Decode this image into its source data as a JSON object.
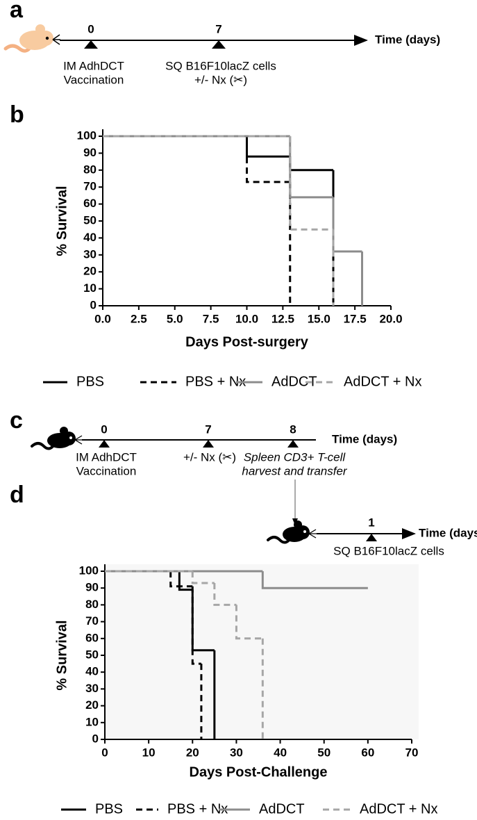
{
  "panel_labels": [
    "a",
    "b",
    "c",
    "d"
  ],
  "timeline_a": {
    "axis_label": "Time (days)",
    "events": [
      {
        "day": 0,
        "label": [
          "IM AdhDCT",
          "Vaccination"
        ]
      },
      {
        "day": 7,
        "label": [
          "SQ B16F10lacZ cells",
          "+/- Nx  (✂)"
        ]
      }
    ]
  },
  "timeline_c": {
    "axis_label": "Time (days)",
    "events": [
      {
        "day": 0,
        "label": [
          "IM AdhDCT",
          "Vaccination"
        ]
      },
      {
        "day": 7,
        "label": [
          "+/- Nx (✂)"
        ]
      },
      {
        "day": 8,
        "label": [
          "Spleen CD3+ T-cell",
          "harvest and transfer"
        ]
      }
    ],
    "second": {
      "axis_label": "Time (days)",
      "events": [
        {
          "day": 1,
          "label": [
            "SQ B16F10lacZ cells"
          ]
        }
      ]
    }
  },
  "chart_data": [
    {
      "type": "step",
      "x_label": "Days Post-surgery",
      "y_label": "% Survival",
      "legend": "bottom",
      "xlim": [
        0,
        20
      ],
      "ylim": [
        0,
        100
      ],
      "xticks": [
        {
          "value": 0,
          "label": "0.0"
        },
        2.5,
        {
          "value": 5,
          "label": "5.0"
        },
        7.5,
        {
          "value": 10,
          "label": "10.0"
        },
        12.5,
        {
          "value": 15,
          "label": "15.0"
        },
        17.5,
        {
          "value": 20,
          "label": "20.0"
        }
      ],
      "yticks": [
        0,
        10,
        20,
        30,
        40,
        50,
        60,
        70,
        80,
        90,
        100
      ],
      "series": [
        {
          "name": "PBS",
          "color": "#000000",
          "line_style": "solid",
          "x": [
            0,
            10,
            13,
            16
          ],
          "values": [
            100,
            88,
            80,
            0
          ]
        },
        {
          "name": "PBS + Nx",
          "color": "#000000",
          "line_style": "dashed",
          "x": [
            0,
            10,
            13
          ],
          "values": [
            100,
            73,
            0
          ]
        },
        {
          "name": "AdDCT",
          "color": "#8c8c8c",
          "line_style": "solid",
          "x": [
            0,
            13,
            16,
            18
          ],
          "values": [
            100,
            64,
            32,
            0
          ]
        },
        {
          "name": "AdDCT + Nx",
          "color": "#a6a6a6",
          "line_style": "dashed",
          "x": [
            0,
            13,
            16
          ],
          "values": [
            100,
            45,
            0
          ]
        }
      ]
    },
    {
      "type": "step",
      "x_label": "Days Post-Challenge",
      "y_label": "% Survival",
      "legend": "bottom",
      "xlim": [
        0,
        70
      ],
      "ylim": [
        0,
        100
      ],
      "xticks": [
        0,
        10,
        20,
        30,
        40,
        50,
        60,
        70
      ],
      "yticks": [
        0,
        10,
        20,
        30,
        40,
        50,
        60,
        70,
        80,
        90,
        100
      ],
      "series": [
        {
          "name": "PBS",
          "color": "#000000",
          "line_style": "solid",
          "x": [
            0,
            17,
            20,
            25
          ],
          "values": [
            100,
            89,
            53,
            0
          ]
        },
        {
          "name": "PBS + Nx",
          "color": "#000000",
          "line_style": "dashed",
          "x": [
            0,
            15,
            20,
            22
          ],
          "values": [
            100,
            91,
            45,
            0
          ]
        },
        {
          "name": "AdDCT",
          "color": "#8c8c8c",
          "line_style": "solid",
          "x": [
            0,
            36,
            60
          ],
          "values": [
            100,
            90,
            90
          ]
        },
        {
          "name": "AdDCT + Nx",
          "color": "#a6a6a6",
          "line_style": "dashed",
          "x": [
            0,
            20,
            25,
            30,
            36
          ],
          "values": [
            100,
            93,
            80,
            60,
            0
          ]
        }
      ]
    }
  ]
}
